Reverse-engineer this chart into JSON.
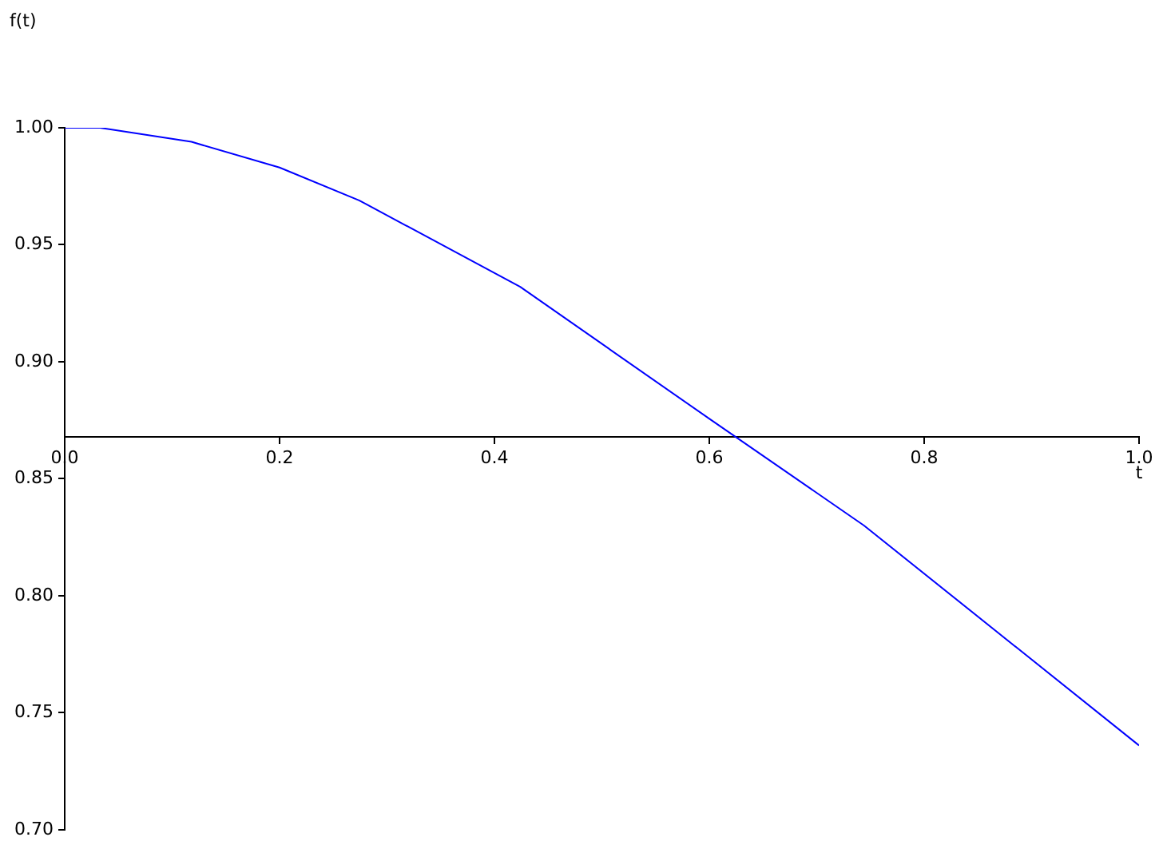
{
  "chart_data": {
    "type": "line",
    "xlabel": "t",
    "ylabel": "f(t)",
    "x": [
      0,
      0.033,
      0.118,
      0.2,
      0.274,
      0.424,
      0.602,
      0.744,
      1.0
    ],
    "series": [
      {
        "color": "#0000ff",
        "values": [
          1.0,
          1.0,
          0.994,
          0.983,
          0.969,
          0.932,
          0.875,
          0.83,
          0.736
        ]
      }
    ],
    "xlim": [
      0,
      1
    ],
    "xticks": [
      {
        "value": 0,
        "label": "0.0"
      },
      0.2,
      0.4,
      0.6,
      0.8,
      {
        "value": 1,
        "label": "1.0"
      }
    ],
    "ylim": [
      0.7,
      1.0
    ],
    "yticks": [
      {
        "value": 0.7,
        "label": "0.70"
      },
      0.75,
      {
        "value": 0.8,
        "label": "0.80"
      },
      0.85,
      {
        "value": 0.9,
        "label": "0.90"
      },
      0.95,
      {
        "value": 1.0,
        "label": "1.00"
      }
    ],
    "grid": false,
    "legend": false,
    "marker": "none"
  }
}
